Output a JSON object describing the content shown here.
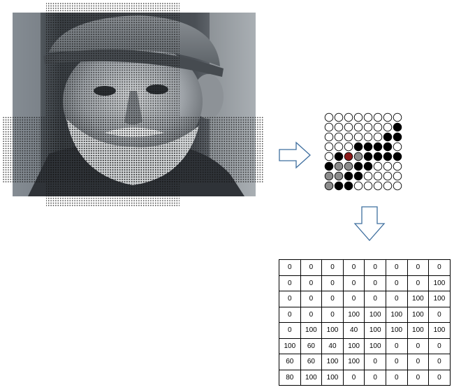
{
  "colors": {
    "white": "#ffffff",
    "black": "#000000",
    "gray": "#8c8c8c",
    "highlight": "#8b1a1a",
    "arrow_stroke": "#3f6f9f"
  },
  "icons": {
    "right_arrow": "right-arrow-icon",
    "down_arrow": "down-arrow-icon"
  },
  "pixel_grid": [
    [
      "white",
      "white",
      "white",
      "white",
      "white",
      "white",
      "white",
      "white"
    ],
    [
      "white",
      "white",
      "white",
      "white",
      "white",
      "white",
      "white",
      "black"
    ],
    [
      "white",
      "white",
      "white",
      "white",
      "white",
      "white",
      "black",
      "black"
    ],
    [
      "white",
      "white",
      "white",
      "black",
      "black",
      "black",
      "black",
      "white"
    ],
    [
      "white",
      "black",
      "highlight",
      "gray",
      "black",
      "black",
      "black",
      "black"
    ],
    [
      "black",
      "gray",
      "gray",
      "black",
      "black",
      "white",
      "white",
      "white"
    ],
    [
      "gray",
      "gray",
      "black",
      "black",
      "white",
      "white",
      "white",
      "white"
    ],
    [
      "gray",
      "black",
      "black",
      "white",
      "white",
      "white",
      "white",
      "white"
    ]
  ],
  "value_table": [
    [
      "0",
      "0",
      "0",
      "0",
      "0",
      "0",
      "0",
      "0"
    ],
    [
      "0",
      "0",
      "0",
      "0",
      "0",
      "0",
      "0",
      "100"
    ],
    [
      "0",
      "0",
      "0",
      "0",
      "0",
      "0",
      "100",
      "100"
    ],
    [
      "0",
      "0",
      "0",
      "100",
      "100",
      "100",
      "100",
      "0"
    ],
    [
      "0",
      "100",
      "100",
      "40",
      "100",
      "100",
      "100",
      "100"
    ],
    [
      "100",
      "60",
      "40",
      "100",
      "100",
      "0",
      "0",
      "0"
    ],
    [
      "60",
      "60",
      "100",
      "100",
      "0",
      "0",
      "0",
      "0"
    ],
    [
      "80",
      "100",
      "100",
      "0",
      "0",
      "0",
      "0",
      "0"
    ]
  ]
}
